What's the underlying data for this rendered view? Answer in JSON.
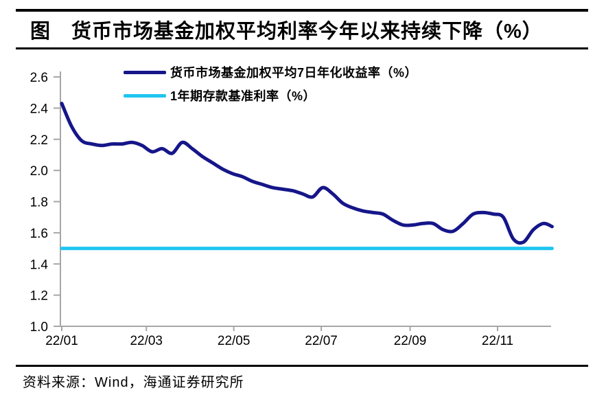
{
  "header": {
    "title": "图　货币市场基金加权平均利率今年以来持续下降（%）"
  },
  "footer": {
    "source": "资料来源：Wind，海通证券研究所"
  },
  "colors": {
    "fund_yield_line": "#16168A",
    "deposit_rate_line": "#20C5F0",
    "axis": "#A6A6A6",
    "text": "#000000"
  },
  "chart_data": {
    "type": "line",
    "title": "货币市场基金加权平均利率今年以来持续下降（%）",
    "xlabel": "",
    "ylabel": "",
    "ylim": [
      1.0,
      2.6
    ],
    "grid": false,
    "legend_position": "top-left",
    "axis_color": "#A6A6A6",
    "x_epoch": "2022-01-01",
    "y_ticks": [
      1.0,
      1.2,
      1.4,
      1.6,
      1.8,
      2.0,
      2.2,
      2.4,
      2.6
    ],
    "x_ticks": [
      {
        "label": "22/01",
        "date": "2022-01-01"
      },
      {
        "label": "22/03",
        "date": "2022-03-01"
      },
      {
        "label": "22/05",
        "date": "2022-05-01"
      },
      {
        "label": "22/07",
        "date": "2022-07-01"
      },
      {
        "label": "22/09",
        "date": "2022-09-01"
      },
      {
        "label": "22/11",
        "date": "2022-11-01"
      }
    ],
    "legend": [
      {
        "label": "货币市场基金加权平均7日年化收益率（%）",
        "color": "#16168A"
      },
      {
        "label": "1年期存款基准利率（%）",
        "color": "#20C5F0"
      }
    ],
    "series": [
      {
        "name": "货币市场基金加权平均7日年化收益率（%）",
        "color": "#16168A",
        "smooth": true,
        "points": [
          {
            "date": "2022-01-01",
            "value": 2.43
          },
          {
            "date": "2022-01-08",
            "value": 2.28
          },
          {
            "date": "2022-01-15",
            "value": 2.19
          },
          {
            "date": "2022-01-22",
            "value": 2.17
          },
          {
            "date": "2022-01-29",
            "value": 2.16
          },
          {
            "date": "2022-02-05",
            "value": 2.17
          },
          {
            "date": "2022-02-12",
            "value": 2.17
          },
          {
            "date": "2022-02-19",
            "value": 2.18
          },
          {
            "date": "2022-02-26",
            "value": 2.16
          },
          {
            "date": "2022-03-05",
            "value": 2.12
          },
          {
            "date": "2022-03-12",
            "value": 2.14
          },
          {
            "date": "2022-03-19",
            "value": 2.11
          },
          {
            "date": "2022-03-26",
            "value": 2.18
          },
          {
            "date": "2022-04-02",
            "value": 2.14
          },
          {
            "date": "2022-04-09",
            "value": 2.09
          },
          {
            "date": "2022-04-16",
            "value": 2.05
          },
          {
            "date": "2022-04-23",
            "value": 2.01
          },
          {
            "date": "2022-04-30",
            "value": 1.98
          },
          {
            "date": "2022-05-07",
            "value": 1.96
          },
          {
            "date": "2022-05-14",
            "value": 1.93
          },
          {
            "date": "2022-05-21",
            "value": 1.91
          },
          {
            "date": "2022-05-28",
            "value": 1.89
          },
          {
            "date": "2022-06-04",
            "value": 1.88
          },
          {
            "date": "2022-06-11",
            "value": 1.87
          },
          {
            "date": "2022-06-18",
            "value": 1.85
          },
          {
            "date": "2022-06-25",
            "value": 1.83
          },
          {
            "date": "2022-07-02",
            "value": 1.89
          },
          {
            "date": "2022-07-09",
            "value": 1.85
          },
          {
            "date": "2022-07-16",
            "value": 1.79
          },
          {
            "date": "2022-07-23",
            "value": 1.76
          },
          {
            "date": "2022-07-30",
            "value": 1.74
          },
          {
            "date": "2022-08-06",
            "value": 1.73
          },
          {
            "date": "2022-08-13",
            "value": 1.72
          },
          {
            "date": "2022-08-20",
            "value": 1.68
          },
          {
            "date": "2022-08-27",
            "value": 1.65
          },
          {
            "date": "2022-09-03",
            "value": 1.65
          },
          {
            "date": "2022-09-10",
            "value": 1.66
          },
          {
            "date": "2022-09-17",
            "value": 1.66
          },
          {
            "date": "2022-09-24",
            "value": 1.62
          },
          {
            "date": "2022-10-01",
            "value": 1.61
          },
          {
            "date": "2022-10-08",
            "value": 1.66
          },
          {
            "date": "2022-10-15",
            "value": 1.72
          },
          {
            "date": "2022-10-22",
            "value": 1.73
          },
          {
            "date": "2022-10-29",
            "value": 1.72
          },
          {
            "date": "2022-11-05",
            "value": 1.7
          },
          {
            "date": "2022-11-12",
            "value": 1.56
          },
          {
            "date": "2022-11-19",
            "value": 1.54
          },
          {
            "date": "2022-11-26",
            "value": 1.62
          },
          {
            "date": "2022-12-03",
            "value": 1.66
          },
          {
            "date": "2022-12-09",
            "value": 1.64
          }
        ]
      },
      {
        "name": "1年期存款基准利率（%）",
        "color": "#20C5F0",
        "smooth": false,
        "points": [
          {
            "date": "2022-01-01",
            "value": 1.5
          },
          {
            "date": "2022-12-09",
            "value": 1.5
          }
        ]
      }
    ]
  }
}
